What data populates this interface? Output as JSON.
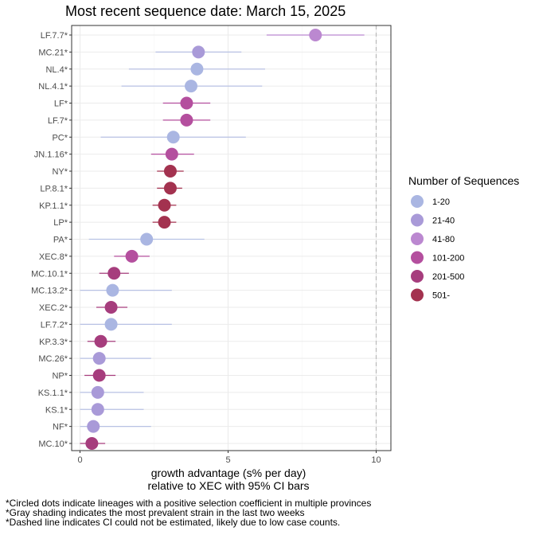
{
  "chart_data": {
    "type": "scatter",
    "title": "Most recent sequence date: March 15, 2025",
    "xlabel_line1": "growth advantage (s% per day)",
    "xlabel_line2": "relative to  XEC  with 95% CI bars",
    "xlim": [
      -0.3,
      10.5
    ],
    "xticks": [
      0,
      5,
      10
    ],
    "dashed_vline": 10,
    "grid": true,
    "legend_title": "Number of Sequences",
    "legend_placement": "right",
    "legend": [
      {
        "label": "1-20",
        "color": "#aab6e2"
      },
      {
        "label": "21-40",
        "color": "#a99ad8"
      },
      {
        "label": "41-80",
        "color": "#bb88d0"
      },
      {
        "label": "101-200",
        "color": "#b44f9e"
      },
      {
        "label": "201-500",
        "color": "#a63d7d"
      },
      {
        "label": "501-",
        "color": "#a3324f"
      }
    ],
    "points": [
      {
        "lineage": "LF.7.7*",
        "x": 7.95,
        "lo": 6.3,
        "hi": 9.6,
        "group": 2
      },
      {
        "lineage": "MC.21*",
        "x": 4.0,
        "lo": 2.55,
        "hi": 5.45,
        "group": 1
      },
      {
        "lineage": "NL.4*",
        "x": 3.95,
        "lo": 1.65,
        "hi": 6.25,
        "group": 0
      },
      {
        "lineage": "NL.4.1*",
        "x": 3.75,
        "lo": 1.4,
        "hi": 6.15,
        "group": 0
      },
      {
        "lineage": "LF*",
        "x": 3.6,
        "lo": 2.8,
        "hi": 4.4,
        "group": 3
      },
      {
        "lineage": "LF.7*",
        "x": 3.6,
        "lo": 2.8,
        "hi": 4.4,
        "group": 3
      },
      {
        "lineage": "PC*",
        "x": 3.15,
        "lo": 0.7,
        "hi": 5.6,
        "group": 0
      },
      {
        "lineage": "JN.1.16*",
        "x": 3.1,
        "lo": 2.4,
        "hi": 3.85,
        "group": 3
      },
      {
        "lineage": "NY*",
        "x": 3.05,
        "lo": 2.6,
        "hi": 3.5,
        "group": 5
      },
      {
        "lineage": "LP.8.1*",
        "x": 3.05,
        "lo": 2.6,
        "hi": 3.45,
        "group": 5
      },
      {
        "lineage": "KP.1.1*",
        "x": 2.85,
        "lo": 2.45,
        "hi": 3.25,
        "group": 5
      },
      {
        "lineage": "LP*",
        "x": 2.85,
        "lo": 2.45,
        "hi": 3.25,
        "group": 5
      },
      {
        "lineage": "PA*",
        "x": 2.25,
        "lo": 0.3,
        "hi": 4.2,
        "group": 0
      },
      {
        "lineage": "XEC.8*",
        "x": 1.75,
        "lo": 1.15,
        "hi": 2.35,
        "group": 3
      },
      {
        "lineage": "MC.10.1*",
        "x": 1.15,
        "lo": 0.65,
        "hi": 1.65,
        "group": 4
      },
      {
        "lineage": "MC.13.2*",
        "x": 1.1,
        "lo": 0.0,
        "hi": 3.1,
        "group": 0
      },
      {
        "lineage": "XEC.2*",
        "x": 1.05,
        "lo": 0.55,
        "hi": 1.6,
        "group": 4
      },
      {
        "lineage": "LF.7.2*",
        "x": 1.05,
        "lo": 0.0,
        "hi": 3.1,
        "group": 0
      },
      {
        "lineage": "KP.3.3*",
        "x": 0.7,
        "lo": 0.25,
        "hi": 1.2,
        "group": 4
      },
      {
        "lineage": "MC.26*",
        "x": 0.65,
        "lo": 0.0,
        "hi": 2.4,
        "group": 1
      },
      {
        "lineage": "NP*",
        "x": 0.65,
        "lo": 0.15,
        "hi": 1.2,
        "group": 4
      },
      {
        "lineage": "KS.1.1*",
        "x": 0.6,
        "lo": 0.0,
        "hi": 2.15,
        "group": 1
      },
      {
        "lineage": "KS.1*",
        "x": 0.6,
        "lo": 0.0,
        "hi": 2.15,
        "group": 1
      },
      {
        "lineage": "NF*",
        "x": 0.45,
        "lo": 0.0,
        "hi": 2.4,
        "group": 1
      },
      {
        "lineage": "MC.10*",
        "x": 0.4,
        "lo": 0.0,
        "hi": 0.85,
        "group": 4
      }
    ],
    "footnotes": [
      "*Circled dots indicate lineages with a positive selection coefficient in multiple provinces",
      "*Gray shading indicates the most prevalent strain in the last two weeks",
      "*Dashed line indicates CI could not be estimated, likely due to low case counts."
    ]
  },
  "colors": {
    "panel_border": "#333333",
    "grid_major": "#ebebeb",
    "grid_minor": "#f5f5f5",
    "ci_light": "#b8c2e4",
    "dashed_line": "#bbbbbb"
  }
}
